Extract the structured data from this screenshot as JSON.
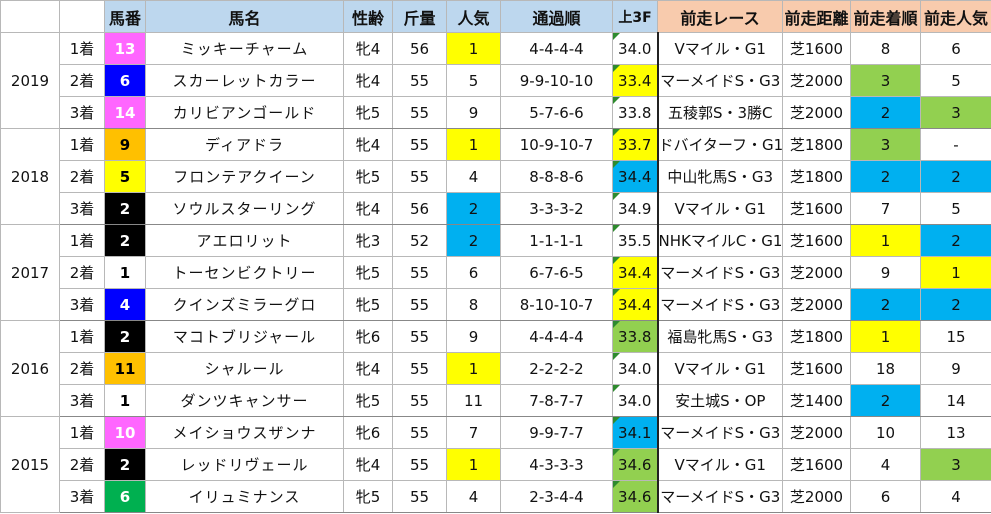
{
  "headers": [
    "",
    "",
    "馬番",
    "馬名",
    "性齢",
    "斤量",
    "人気",
    "通過順",
    "上3F",
    "前走レース",
    "前走距離",
    "前走着順",
    "前走人気"
  ],
  "colors": {
    "pink": "#ff66ff",
    "blue_num": "#0000ff",
    "black": "#000000",
    "white": "#ffffff",
    "yellow": "#ffff00",
    "orange": "#ffc000",
    "red": "#ff0000",
    "green_num": "#00b050",
    "cell_blue": "#00b0f0",
    "cell_green": "#92d050",
    "header_blue": "#bdd7ee",
    "header_orange": "#f8cbad"
  },
  "groups": [
    {
      "year": "2019",
      "rows": [
        {
          "place": "1着",
          "num": "13",
          "num_bg": "#ff66ff",
          "num_color": "#ffffff",
          "name": "ミッキーチャーム",
          "sex_age": "牝4",
          "weight": "56",
          "pop": "1",
          "pop_hl": "yellow",
          "passing": "4-4-4-4",
          "f3": "34.0",
          "f3_hl": "",
          "prev_race": "Vマイル・G1",
          "prev_small": false,
          "prev_dist": "芝1600",
          "prev_place": "8",
          "prev_place_hl": "",
          "prev_pop": "6",
          "prev_pop_hl": ""
        },
        {
          "place": "2着",
          "num": "6",
          "num_bg": "#0000ff",
          "num_color": "#ffffff",
          "name": "スカーレットカラー",
          "sex_age": "牝4",
          "weight": "55",
          "pop": "5",
          "pop_hl": "",
          "passing": "9-9-10-10",
          "f3": "33.4",
          "f3_hl": "yellow",
          "prev_race": "マーメイドS・G3",
          "prev_small": true,
          "prev_dist": "芝2000",
          "prev_place": "3",
          "prev_place_hl": "green",
          "prev_pop": "5",
          "prev_pop_hl": ""
        },
        {
          "place": "3着",
          "num": "14",
          "num_bg": "#ff66ff",
          "num_color": "#ffffff",
          "name": "カリビアンゴールド",
          "sex_age": "牝5",
          "weight": "55",
          "pop": "9",
          "pop_hl": "",
          "passing": "5-7-6-6",
          "f3": "33.8",
          "f3_hl": "",
          "prev_race": "五稜郭S・3勝C",
          "prev_small": false,
          "prev_dist": "芝2000",
          "prev_place": "2",
          "prev_place_hl": "blue",
          "prev_pop": "3",
          "prev_pop_hl": "green"
        }
      ]
    },
    {
      "year": "2018",
      "rows": [
        {
          "place": "1着",
          "num": "9",
          "num_bg": "#ffc000",
          "num_color": "#000000",
          "name": "ディアドラ",
          "sex_age": "牝4",
          "weight": "55",
          "pop": "1",
          "pop_hl": "yellow",
          "passing": "10-9-10-7",
          "f3": "33.7",
          "f3_hl": "yellow",
          "prev_race": "ドバイターフ・G1",
          "prev_small": true,
          "prev_dist": "芝1800",
          "prev_place": "3",
          "prev_place_hl": "green",
          "prev_pop": "-",
          "prev_pop_hl": ""
        },
        {
          "place": "2着",
          "num": "5",
          "num_bg": "#ffff00",
          "num_color": "#000000",
          "name": "フロンテアクイーン",
          "sex_age": "牝5",
          "weight": "55",
          "pop": "4",
          "pop_hl": "",
          "passing": "8-8-8-6",
          "f3": "34.4",
          "f3_hl": "blue",
          "prev_race": "中山牝馬S・G3",
          "prev_small": false,
          "prev_dist": "芝1800",
          "prev_place": "2",
          "prev_place_hl": "blue",
          "prev_pop": "2",
          "prev_pop_hl": "blue"
        },
        {
          "place": "3着",
          "num": "2",
          "num_bg": "#000000",
          "num_color": "#ffffff",
          "name": "ソウルスターリング",
          "sex_age": "牝4",
          "weight": "56",
          "pop": "2",
          "pop_hl": "blue",
          "passing": "3-3-3-2",
          "f3": "34.9",
          "f3_hl": "",
          "prev_race": "Vマイル・G1",
          "prev_small": false,
          "prev_dist": "芝1600",
          "prev_place": "7",
          "prev_place_hl": "",
          "prev_pop": "5",
          "prev_pop_hl": ""
        }
      ]
    },
    {
      "year": "2017",
      "rows": [
        {
          "place": "1着",
          "num": "2",
          "num_bg": "#000000",
          "num_color": "#ffffff",
          "name": "アエロリット",
          "sex_age": "牝3",
          "weight": "52",
          "pop": "2",
          "pop_hl": "blue",
          "passing": "1-1-1-1",
          "f3": "35.5",
          "f3_hl": "",
          "prev_race": "NHKマイルC・G1",
          "prev_small": true,
          "prev_dist": "芝1600",
          "prev_place": "1",
          "prev_place_hl": "yellow",
          "prev_pop": "2",
          "prev_pop_hl": "blue"
        },
        {
          "place": "2着",
          "num": "1",
          "num_bg": "#ffffff",
          "num_color": "#000000",
          "name": "トーセンビクトリー",
          "sex_age": "牝5",
          "weight": "55",
          "pop": "6",
          "pop_hl": "",
          "passing": "6-7-6-5",
          "f3": "34.4",
          "f3_hl": "yellow",
          "prev_race": "マーメイドS・G3",
          "prev_small": true,
          "prev_dist": "芝2000",
          "prev_place": "9",
          "prev_place_hl": "",
          "prev_pop": "1",
          "prev_pop_hl": "yellow"
        },
        {
          "place": "3着",
          "num": "4",
          "num_bg": "#0000ff",
          "num_color": "#ffffff",
          "name": "クインズミラーグロ",
          "sex_age": "牝5",
          "weight": "55",
          "pop": "8",
          "pop_hl": "",
          "passing": "8-10-10-7",
          "f3": "34.4",
          "f3_hl": "yellow",
          "prev_race": "マーメイドS・G3",
          "prev_small": true,
          "prev_dist": "芝2000",
          "prev_place": "2",
          "prev_place_hl": "blue",
          "prev_pop": "2",
          "prev_pop_hl": "blue"
        }
      ]
    },
    {
      "year": "2016",
      "rows": [
        {
          "place": "1着",
          "num": "2",
          "num_bg": "#000000",
          "num_color": "#ffffff",
          "name": "マコトブリジャール",
          "sex_age": "牝6",
          "weight": "55",
          "pop": "9",
          "pop_hl": "",
          "passing": "4-4-4-4",
          "f3": "33.8",
          "f3_hl": "green",
          "prev_race": "福島牝馬S・G3",
          "prev_small": true,
          "prev_dist": "芝1800",
          "prev_place": "1",
          "prev_place_hl": "yellow",
          "prev_pop": "15",
          "prev_pop_hl": ""
        },
        {
          "place": "2着",
          "num": "11",
          "num_bg": "#ffc000",
          "num_color": "#000000",
          "name": "シャルール",
          "sex_age": "牝4",
          "weight": "55",
          "pop": "1",
          "pop_hl": "yellow",
          "passing": "2-2-2-2",
          "f3": "34.0",
          "f3_hl": "",
          "prev_race": "Vマイル・G1",
          "prev_small": false,
          "prev_dist": "芝1600",
          "prev_place": "18",
          "prev_place_hl": "",
          "prev_pop": "9",
          "prev_pop_hl": ""
        },
        {
          "place": "3着",
          "num": "1",
          "num_bg": "#ffffff",
          "num_color": "#000000",
          "name": "ダンツキャンサー",
          "sex_age": "牝5",
          "weight": "55",
          "pop": "11",
          "pop_hl": "",
          "passing": "7-8-7-7",
          "f3": "34.0",
          "f3_hl": "",
          "prev_race": "安土城S・OP",
          "prev_small": false,
          "prev_dist": "芝1400",
          "prev_place": "2",
          "prev_place_hl": "blue",
          "prev_pop": "14",
          "prev_pop_hl": ""
        }
      ]
    },
    {
      "year": "2015",
      "rows": [
        {
          "place": "1着",
          "num": "10",
          "num_bg": "#ff66ff",
          "num_color": "#ffffff",
          "name": "メイショウスザンナ",
          "sex_age": "牝6",
          "weight": "55",
          "pop": "7",
          "pop_hl": "",
          "passing": "9-9-7-7",
          "f3": "34.1",
          "f3_hl": "blue",
          "prev_race": "マーメイドS・G3",
          "prev_small": true,
          "prev_dist": "芝2000",
          "prev_place": "10",
          "prev_place_hl": "",
          "prev_pop": "13",
          "prev_pop_hl": ""
        },
        {
          "place": "2着",
          "num": "2",
          "num_bg": "#000000",
          "num_color": "#ffffff",
          "name": "レッドリヴェール",
          "sex_age": "牝4",
          "weight": "55",
          "pop": "1",
          "pop_hl": "yellow",
          "passing": "4-3-3-3",
          "f3": "34.6",
          "f3_hl": "green",
          "prev_race": "Vマイル・G1",
          "prev_small": false,
          "prev_dist": "芝1600",
          "prev_place": "4",
          "prev_place_hl": "",
          "prev_pop": "3",
          "prev_pop_hl": "green"
        },
        {
          "place": "3着",
          "num": "6",
          "num_bg": "#00b050",
          "num_color": "#ffffff",
          "name": "イリュミナンス",
          "sex_age": "牝5",
          "weight": "55",
          "pop": "4",
          "pop_hl": "",
          "passing": "2-3-4-4",
          "f3": "34.6",
          "f3_hl": "green",
          "prev_race": "マーメイドS・G3",
          "prev_small": true,
          "prev_dist": "芝2000",
          "prev_place": "6",
          "prev_place_hl": "",
          "prev_pop": "4",
          "prev_pop_hl": ""
        }
      ]
    }
  ]
}
